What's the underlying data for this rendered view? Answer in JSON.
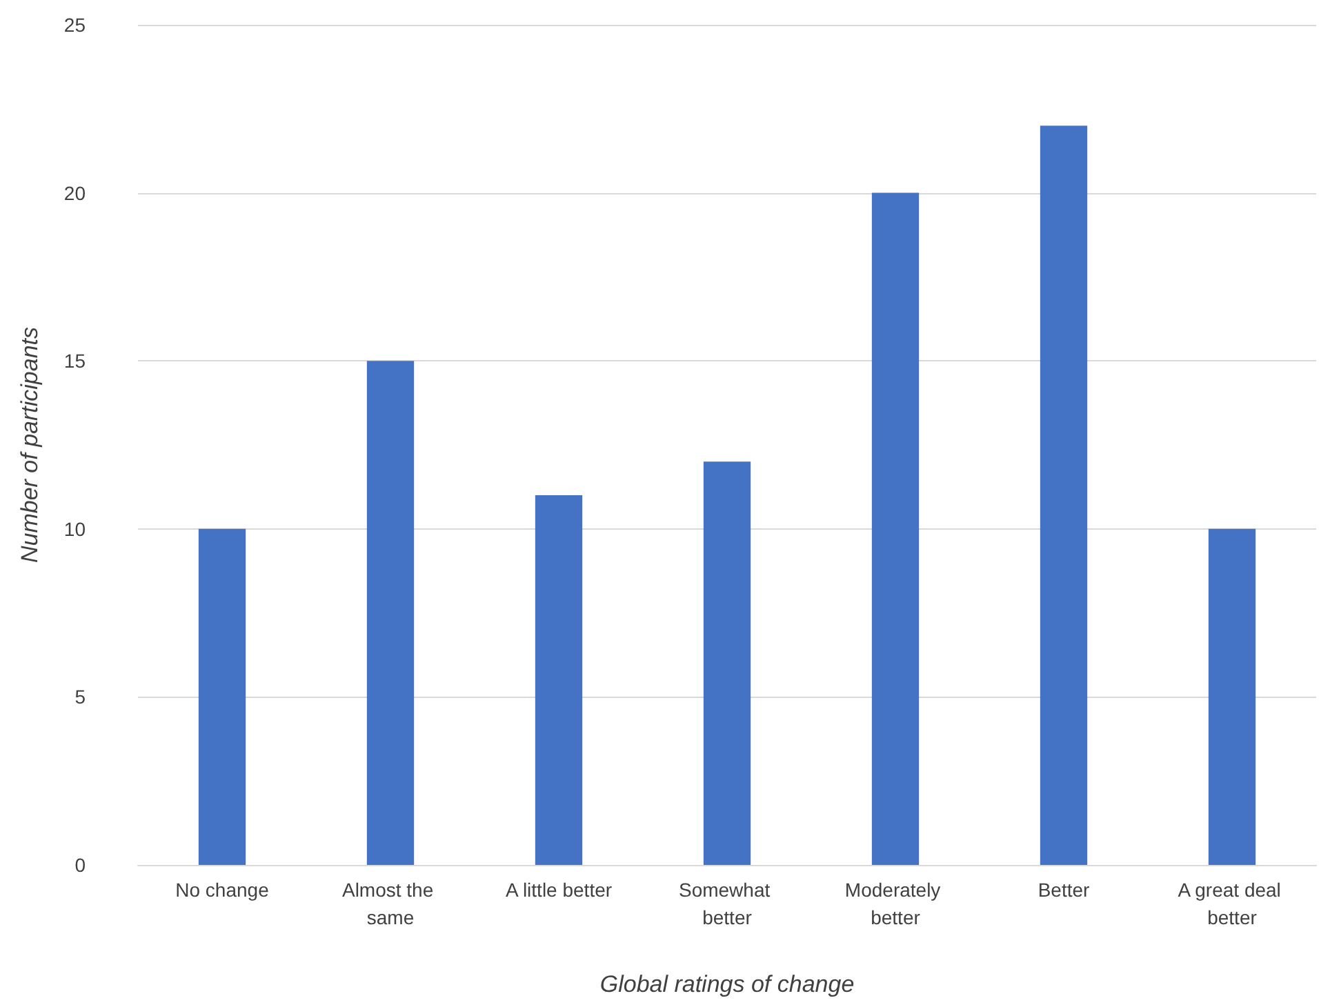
{
  "chart_data": {
    "type": "bar",
    "xlabel": "Global ratings of change",
    "ylabel": "Number of participants",
    "categories": [
      "No change",
      "Almost the same",
      "A little better",
      "Somewhat better",
      "Moderately better",
      "Better",
      "A great deal better"
    ],
    "values": [
      10,
      15,
      11,
      12,
      20,
      22,
      10
    ],
    "color": "#4472c4",
    "ylim": [
      0,
      25
    ],
    "yticks": [
      0,
      5,
      10,
      15,
      20,
      25
    ],
    "grid": "y"
  }
}
